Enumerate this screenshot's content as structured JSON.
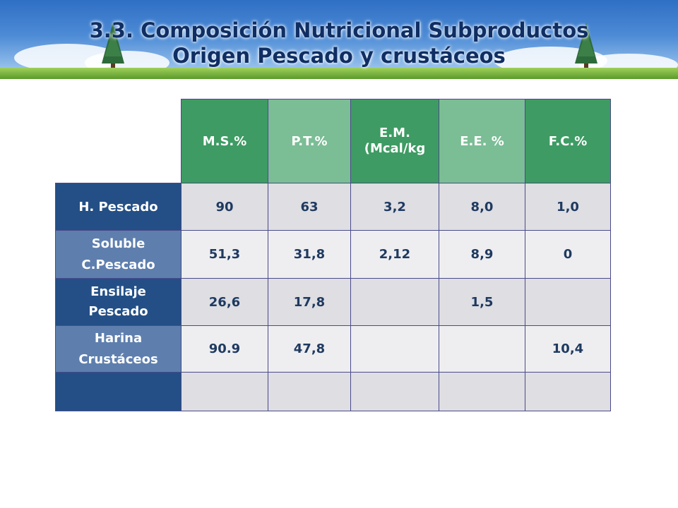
{
  "slide": {
    "title_line1": "3.3. Composición Nutricional Subproductos",
    "title_line2": "Origen Pescado y crustáceos"
  },
  "table": {
    "headers": [
      "M.S.%",
      "P.T.%",
      "E.M. (Mcal/kg",
      "E.E. %",
      "F.C.%"
    ],
    "rows": [
      {
        "label": "H. Pescado",
        "values": [
          "90",
          "63",
          "3,2",
          "8,0",
          "1,0"
        ]
      },
      {
        "label": "Soluble C.Pescado",
        "values": [
          "51,3",
          "31,8",
          "2,12",
          "8,9",
          "0"
        ]
      },
      {
        "label": "Ensilaje Pescado",
        "values": [
          "26,6",
          "17,8",
          "",
          "1,5",
          ""
        ]
      },
      {
        "label": "Harina Crustáceos",
        "values": [
          "90.9",
          "47,8",
          "",
          "",
          "10,4"
        ]
      },
      {
        "label": "",
        "values": [
          "",
          "",
          "",
          "",
          ""
        ]
      }
    ]
  },
  "colors": {
    "header_dark": "#3e9b63",
    "header_light": "#7bbd95",
    "row_dark": "#234f86",
    "row_light": "#5e7fae",
    "title": "#0f2e63"
  }
}
